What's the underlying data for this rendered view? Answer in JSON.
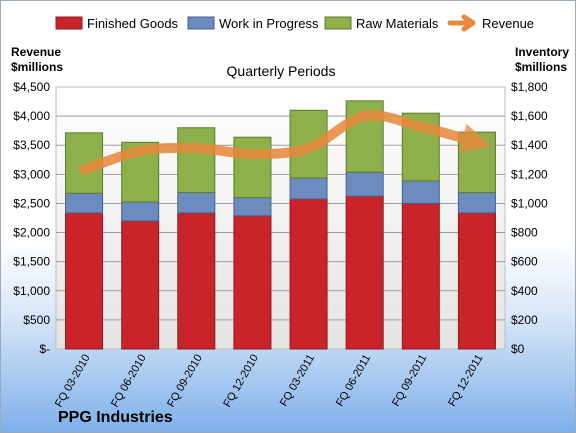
{
  "chart_data": {
    "type": "bar",
    "stacked": true,
    "subtitle": "Quarterly Periods",
    "company": "PPG Industries",
    "left_axis_title": [
      "Revenue",
      "$millions"
    ],
    "right_axis_title": [
      "Inventory",
      "$millions"
    ],
    "categories": [
      "FQ 03-2010",
      "FQ 06-2010",
      "FQ 09-2010",
      "FQ 12-2010",
      "FQ 03-2011",
      "FQ 06-2011",
      "FQ 09-2011",
      "FQ 12-2011"
    ],
    "left_ticks": [
      "$-",
      "$500",
      "$1,000",
      "$1,500",
      "$2,000",
      "$2,500",
      "$3,000",
      "$3,500",
      "$4,000",
      "$4,500"
    ],
    "right_ticks": [
      "$0",
      "$200",
      "$400",
      "$600",
      "$800",
      "$1,000",
      "$1,200",
      "$1,400",
      "$1,600",
      "$1,800"
    ],
    "ylim_left": [
      0,
      4500
    ],
    "ylim_right": [
      0,
      1800
    ],
    "grid": true,
    "legend_position": "top",
    "series": [
      {
        "name": "Finished Goods",
        "axis": "right",
        "color": "#c8242a",
        "values": [
          935,
          880,
          935,
          915,
          1030,
          1050,
          1000,
          935
        ]
      },
      {
        "name": "Work in Progress",
        "axis": "right",
        "color": "#6c8cc0",
        "values": [
          135,
          130,
          140,
          125,
          145,
          165,
          155,
          140
        ]
      },
      {
        "name": "Raw Materials",
        "axis": "right",
        "color": "#8db04a",
        "values": [
          415,
          410,
          445,
          415,
          465,
          490,
          465,
          415
        ]
      },
      {
        "name": "Revenue",
        "axis": "left",
        "type": "line",
        "color": "#e8883a",
        "values": [
          3080,
          3400,
          3450,
          3350,
          3450,
          4000,
          3820,
          3550
        ]
      }
    ]
  }
}
